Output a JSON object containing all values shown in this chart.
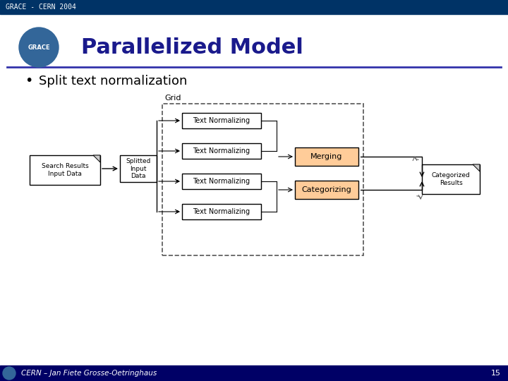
{
  "top_bar_color": "#003366",
  "top_bar_text": "GRACE - CERN 2004",
  "top_bar_text_color": "#ffffff",
  "header_bg": "#ffffff",
  "title_text": "Parallelized Model",
  "title_color": "#1a1a8c",
  "separator_color": "#3333aa",
  "bullet_text": "Split text normalization",
  "bullet_color": "#000000",
  "bottom_bar_color": "#000066",
  "bottom_left_text": "CERN – Jan Fiete Grosse-Oetringhaus",
  "bottom_right_text": "15",
  "bottom_text_color": "#ffffff",
  "grid_label": "Grid",
  "box_text_normalizing": "Text Normalizing",
  "box_merging": "Merging",
  "box_categorizing": "Categorizing",
  "box_search": "Search Results\nInput Data",
  "box_splitted": "Splitted\nInput\nData",
  "box_categorized": "Categorized\nResults",
  "box_fill": "#ffffff",
  "box_edge": "#000000",
  "merging_fill": "#ffcc99",
  "categorizing_fill": "#ffcc99",
  "grid_dash_color": "#555555",
  "arrow_color": "#000000"
}
